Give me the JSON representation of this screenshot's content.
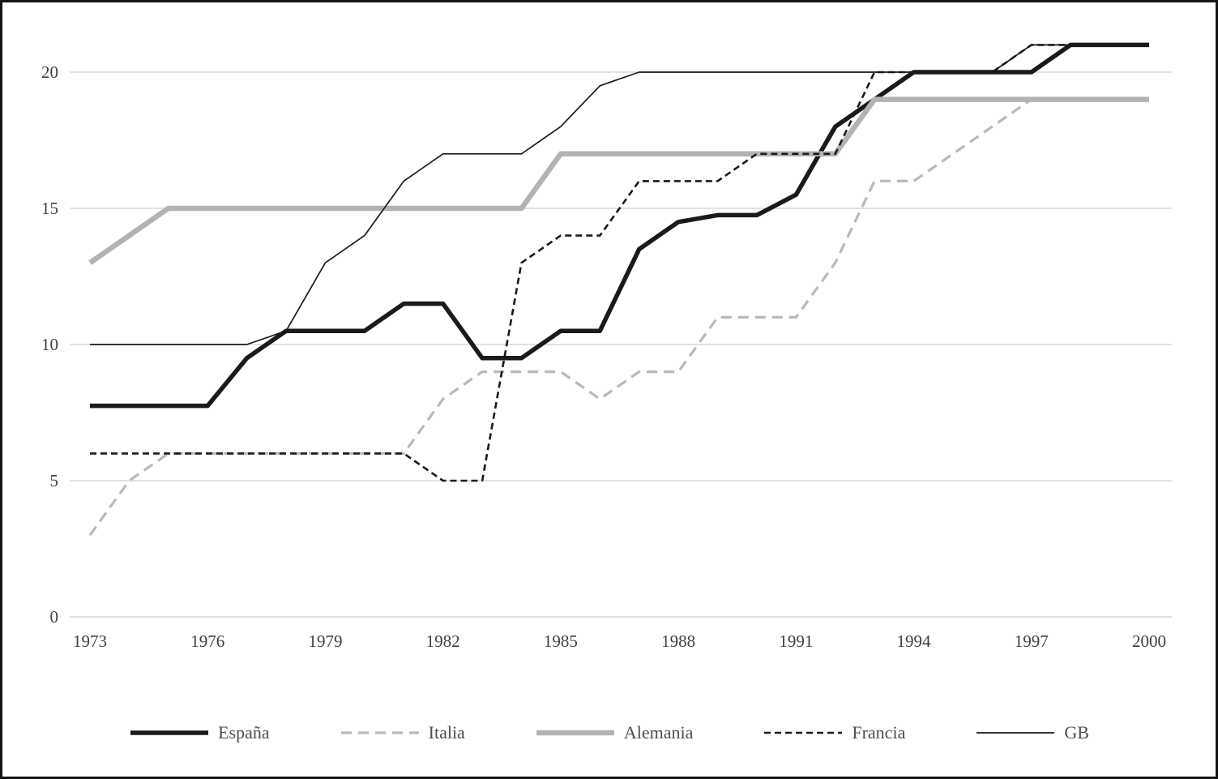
{
  "figure": {
    "border_color": "#141414",
    "background_color": "#ffffff",
    "gridline_color": "#d9d9d9",
    "tick_text_color": "#3f3f3f"
  },
  "chart_data": {
    "type": "line",
    "title": "",
    "xlabel": "",
    "ylabel": "",
    "x_start": 1973,
    "x_end": 2000,
    "x_tick_labels": [
      "1973",
      "1976",
      "1979",
      "1982",
      "1985",
      "1988",
      "1991",
      "1994",
      "1997",
      "2000"
    ],
    "y_ticks": [
      "0",
      "5",
      "10",
      "15",
      "20"
    ],
    "ylim": [
      0,
      21.6
    ],
    "grid": "horizontal",
    "legend_position": "bottom",
    "series": [
      {
        "name": "España",
        "color": "#1a1a1a",
        "width": 5.5,
        "dash": "",
        "values": [
          7.75,
          7.75,
          7.75,
          7.75,
          9.5,
          10.5,
          10.5,
          10.5,
          11.5,
          11.5,
          9.5,
          9.5,
          10.5,
          10.5,
          13.5,
          14.5,
          14.75,
          14.75,
          15.5,
          18,
          19,
          20,
          20,
          20,
          20,
          21,
          21,
          21
        ]
      },
      {
        "name": "Italia",
        "color": "#bababa",
        "width": 3.2,
        "dash": "13 8",
        "values": [
          3,
          5,
          6,
          6,
          6,
          6,
          6,
          6,
          6,
          8,
          9,
          9,
          9,
          8,
          9,
          9,
          11,
          11,
          11,
          13,
          16,
          16,
          17,
          18,
          19,
          19,
          19,
          19
        ]
      },
      {
        "name": "Alemania",
        "color": "#b3b3b3",
        "width": 6.5,
        "dash": "",
        "values": [
          13,
          14,
          15,
          15,
          15,
          15,
          15,
          15,
          15,
          15,
          15,
          15,
          17,
          17,
          17,
          17,
          17,
          17,
          17,
          17,
          19,
          19,
          19,
          19,
          19,
          19,
          19,
          19
        ]
      },
      {
        "name": "Francia",
        "color": "#1a1a1a",
        "width": 2.6,
        "dash": "8 5",
        "values": [
          6,
          6,
          6,
          6,
          6,
          6,
          6,
          6,
          6,
          5,
          5,
          13,
          14,
          14,
          16,
          16,
          16,
          17,
          17,
          17,
          20,
          20,
          20,
          20,
          21,
          21,
          21,
          21
        ]
      },
      {
        "name": "GB",
        "color": "#1a1a1a",
        "width": 1.7,
        "dash": "",
        "values": [
          10,
          10,
          10,
          10,
          10,
          10.5,
          13,
          14,
          16,
          17,
          17,
          17,
          18,
          19.5,
          20,
          20,
          20,
          20,
          20,
          20,
          20,
          20,
          20,
          20,
          21,
          21,
          21,
          21
        ]
      }
    ]
  }
}
